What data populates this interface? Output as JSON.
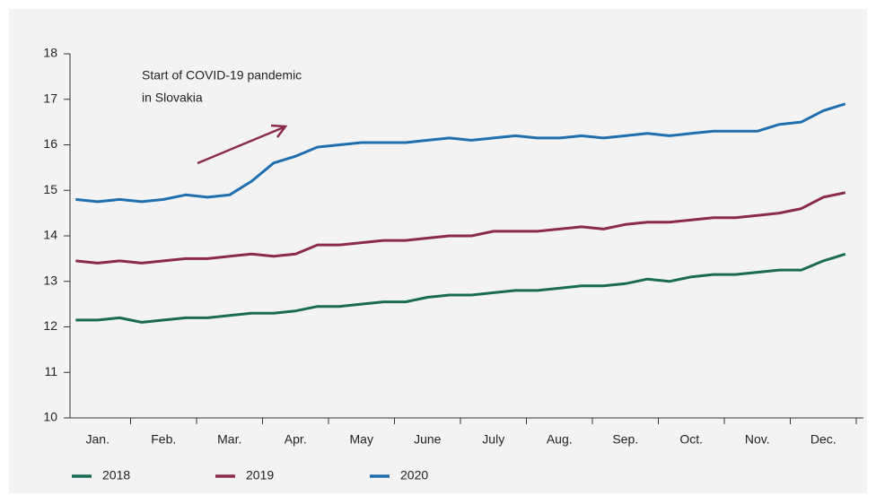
{
  "chart_data": {
    "type": "line",
    "annotation": [
      "Start of COVID-19 pandemic",
      "in Slovakia"
    ],
    "categories": [
      null,
      "Jan.",
      null,
      null,
      "Feb.",
      null,
      null,
      "Mar.",
      null,
      null,
      "Apr.",
      null,
      null,
      "May",
      null,
      null,
      "June",
      null,
      null,
      "July",
      null,
      null,
      "Aug.",
      null,
      null,
      "Sep.",
      null,
      null,
      "Oct.",
      null,
      null,
      "Nov.",
      null,
      null,
      "Dec.",
      null
    ],
    "series": [
      {
        "name": "2018",
        "color": "#1a6b54",
        "values": [
          12.15,
          12.15,
          12.2,
          12.1,
          12.15,
          12.2,
          12.2,
          12.25,
          12.3,
          12.3,
          12.35,
          12.45,
          12.45,
          12.5,
          12.55,
          12.55,
          12.65,
          12.7,
          12.7,
          12.75,
          12.8,
          12.8,
          12.85,
          12.9,
          12.9,
          12.95,
          13.05,
          13.0,
          13.1,
          13.15,
          13.15,
          13.2,
          13.25,
          13.25,
          13.45,
          13.6
        ]
      },
      {
        "name": "2019",
        "color": "#8b2a4a",
        "values": [
          13.45,
          13.4,
          13.45,
          13.4,
          13.45,
          13.5,
          13.5,
          13.55,
          13.6,
          13.55,
          13.6,
          13.8,
          13.8,
          13.85,
          13.9,
          13.9,
          13.95,
          14.0,
          14.0,
          14.1,
          14.1,
          14.1,
          14.15,
          14.2,
          14.15,
          14.25,
          14.3,
          14.3,
          14.35,
          14.4,
          14.4,
          14.45,
          14.5,
          14.6,
          14.85,
          14.95
        ]
      },
      {
        "name": "2020",
        "color": "#1f6fae",
        "values": [
          14.8,
          14.75,
          14.8,
          14.75,
          14.8,
          14.9,
          14.85,
          14.9,
          15.2,
          15.6,
          15.75,
          15.95,
          16.0,
          16.05,
          16.05,
          16.05,
          16.1,
          16.15,
          16.1,
          16.15,
          16.2,
          16.15,
          16.15,
          16.2,
          16.15,
          16.2,
          16.25,
          16.2,
          16.25,
          16.3,
          16.3,
          16.3,
          16.45,
          16.5,
          16.75,
          16.9
        ]
      }
    ],
    "ylim": [
      10,
      18
    ],
    "yticks": [
      10,
      11,
      12,
      13,
      14,
      15,
      16,
      17,
      18
    ]
  }
}
